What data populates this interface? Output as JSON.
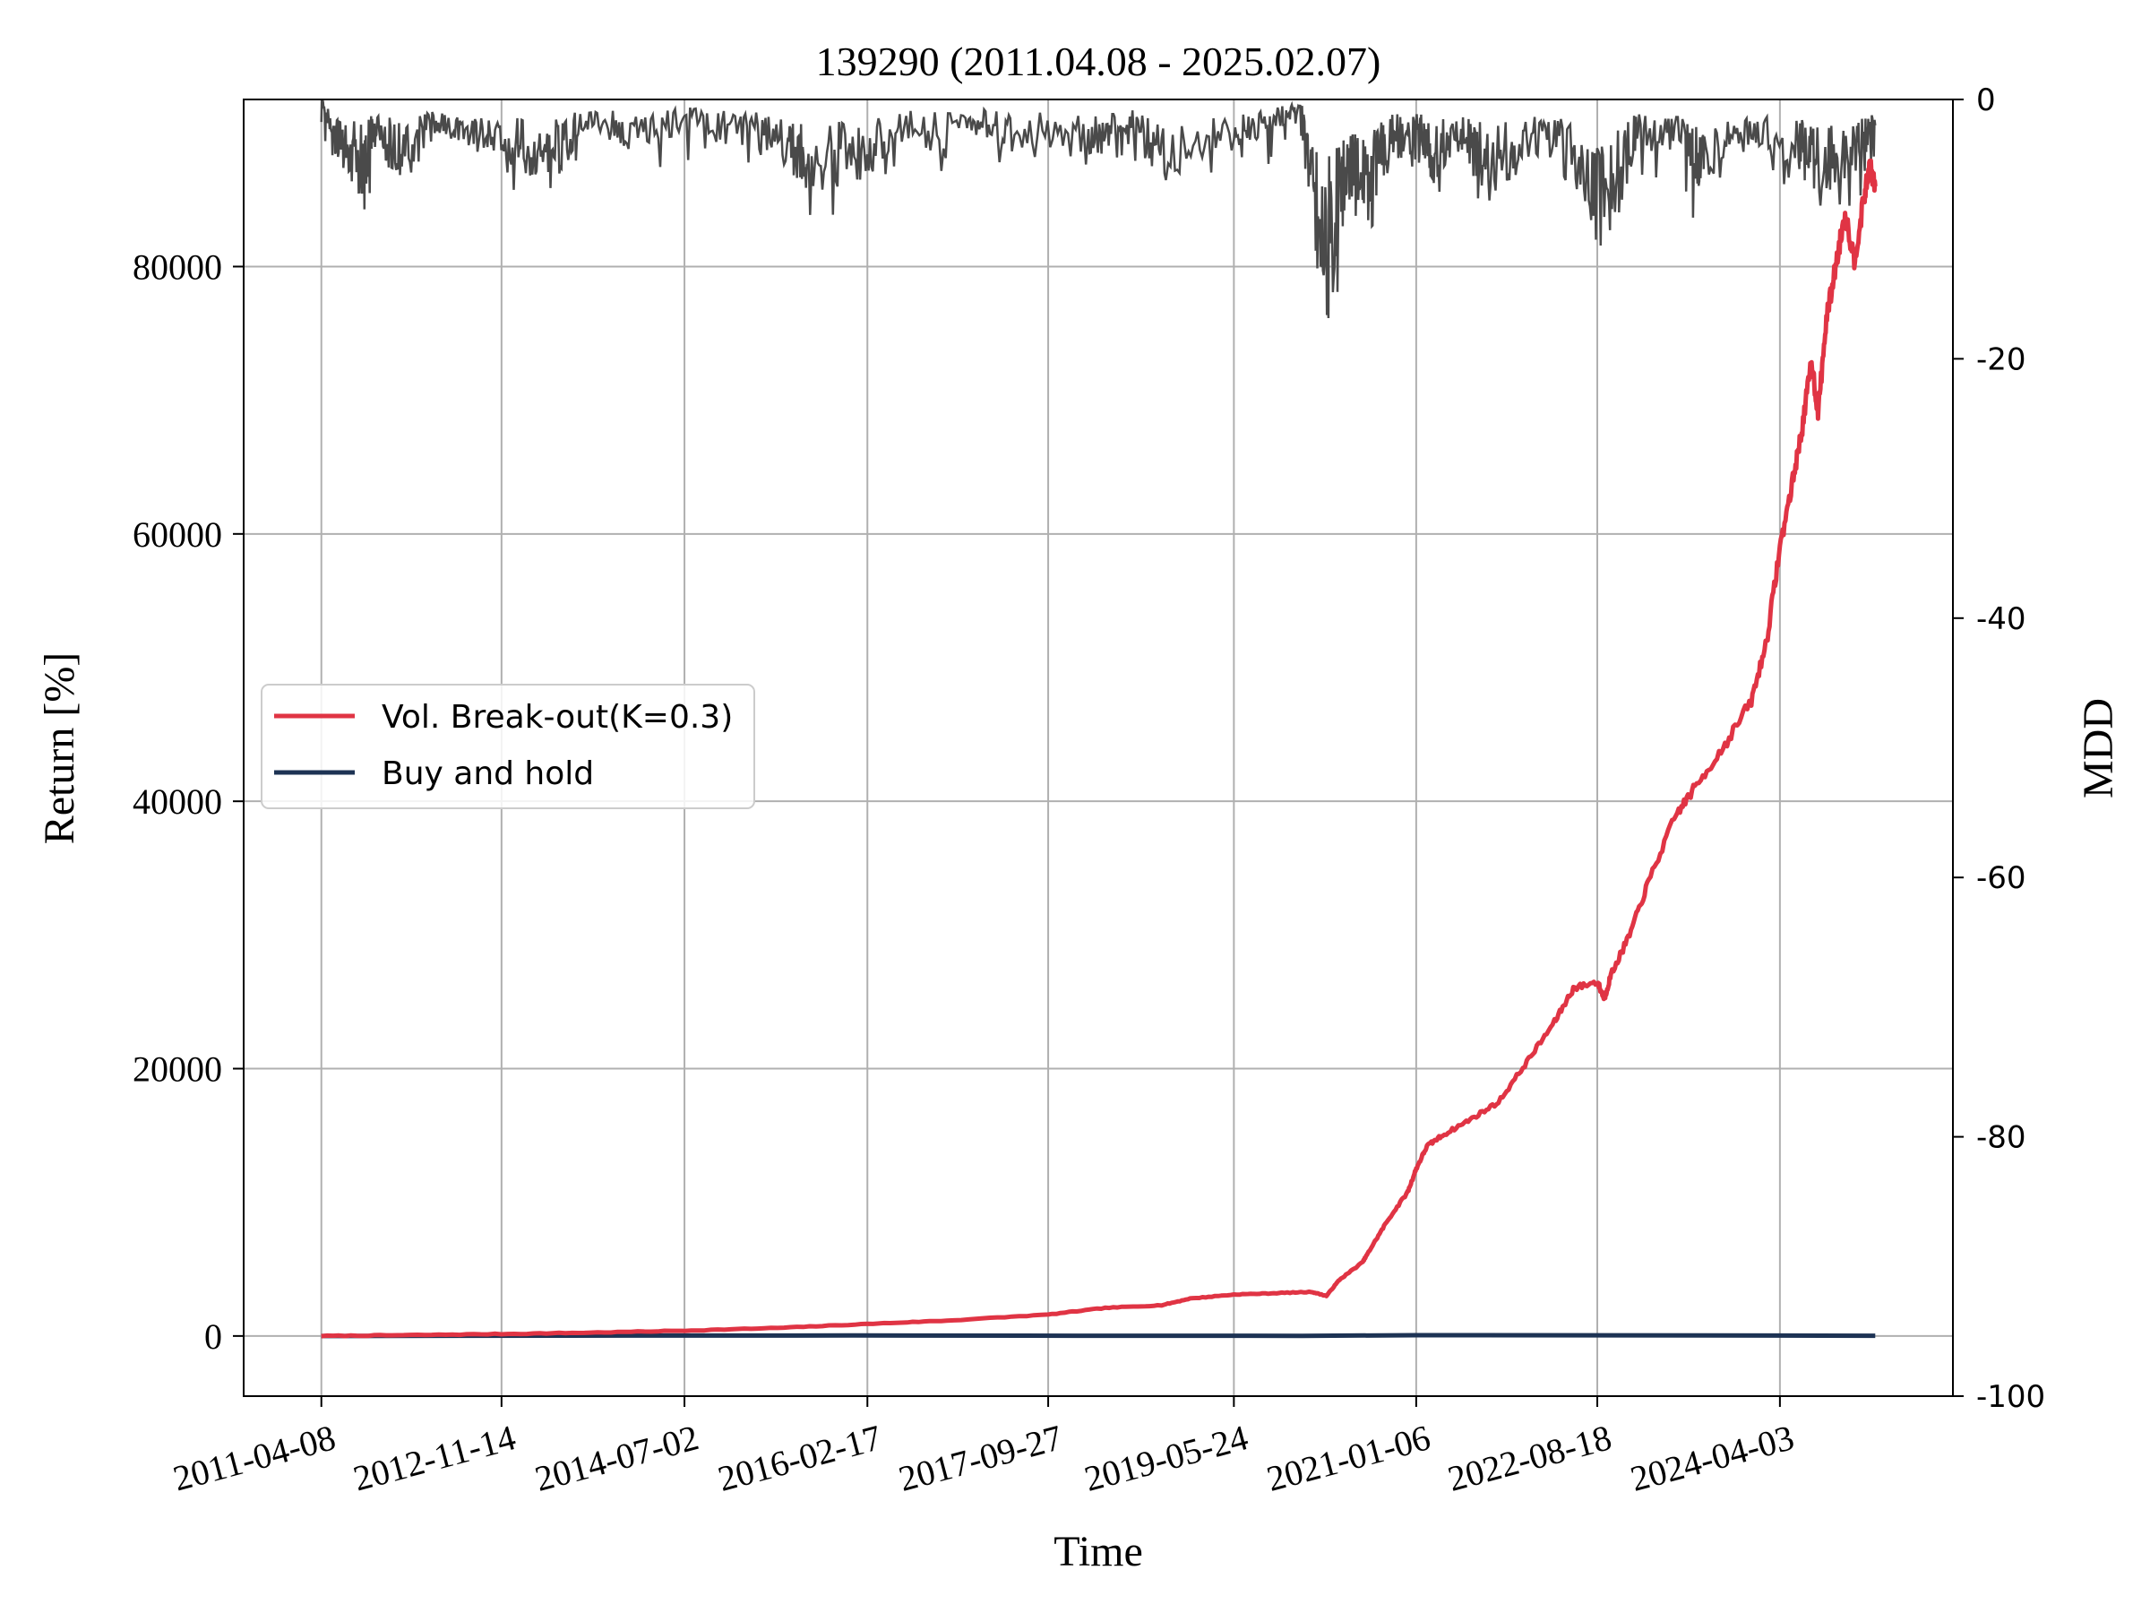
{
  "chart_data": {
    "type": "line",
    "title": "139290 (2011.04.08 - 2025.02.07)",
    "xlabel": "Time",
    "ylabel": "Return [%]",
    "y2label": "MDD",
    "x_start": "2011-04-08",
    "x_end": "2025-02-07",
    "x_ticks": [
      "2011-04-08",
      "2012-11-14",
      "2014-07-02",
      "2016-02-17",
      "2017-09-27",
      "2019-05-24",
      "2021-01-06",
      "2022-08-18",
      "2024-04-03"
    ],
    "ylim": [
      -4500,
      92500
    ],
    "yticks": [
      0,
      20000,
      40000,
      60000,
      80000
    ],
    "y2lim": [
      -100,
      0
    ],
    "y2ticks": [
      0,
      -20,
      -40,
      -60,
      -80,
      -100
    ],
    "grid": true,
    "legend": "center-left",
    "colors": {
      "strategy": "#e03444",
      "benchmark": "#1d3354",
      "mdd": "#4a4a4a"
    },
    "series": [
      {
        "name": "Vol. Break-out(K=0.3)",
        "axis": "left",
        "points": [
          [
            "2011-04-08",
            0
          ],
          [
            "2012-01-01",
            60
          ],
          [
            "2012-11-14",
            150
          ],
          [
            "2013-09-01",
            250
          ],
          [
            "2014-07-02",
            400
          ],
          [
            "2015-05-01",
            600
          ],
          [
            "2016-02-17",
            900
          ],
          [
            "2016-11-01",
            1150
          ],
          [
            "2017-09-27",
            1600
          ],
          [
            "2018-04-01",
            2100
          ],
          [
            "2018-10-01",
            2300
          ],
          [
            "2019-01-01",
            2800
          ],
          [
            "2019-05-24",
            3100
          ],
          [
            "2019-10-01",
            3200
          ],
          [
            "2020-02-01",
            3300
          ],
          [
            "2020-03-20",
            3000
          ],
          [
            "2020-05-01",
            4200
          ],
          [
            "2020-07-15",
            5500
          ],
          [
            "2020-08-10",
            6500
          ],
          [
            "2020-10-01",
            8500
          ],
          [
            "2020-12-10",
            10800
          ],
          [
            "2021-01-06",
            12500
          ],
          [
            "2021-02-10",
            14200
          ],
          [
            "2021-04-01",
            15000
          ],
          [
            "2021-07-01",
            16200
          ],
          [
            "2021-10-01",
            17500
          ],
          [
            "2022-01-01",
            20500
          ],
          [
            "2022-04-01",
            23500
          ],
          [
            "2022-06-01",
            26000
          ],
          [
            "2022-08-18",
            26500
          ],
          [
            "2022-09-10",
            25200
          ],
          [
            "2022-10-01",
            27000
          ],
          [
            "2022-12-01",
            30000
          ],
          [
            "2023-02-01",
            34000
          ],
          [
            "2023-05-01",
            39000
          ],
          [
            "2023-07-01",
            41000
          ],
          [
            "2023-10-01",
            44000
          ],
          [
            "2024-01-01",
            47500
          ],
          [
            "2024-02-20",
            52000
          ],
          [
            "2024-04-03",
            59000
          ],
          [
            "2024-05-15",
            64000
          ],
          [
            "2024-06-15",
            68000
          ],
          [
            "2024-07-15",
            73000
          ],
          [
            "2024-08-05",
            69000
          ],
          [
            "2024-09-01",
            76000
          ],
          [
            "2024-10-01",
            80000
          ],
          [
            "2024-11-01",
            84000
          ],
          [
            "2024-12-01",
            80500
          ],
          [
            "2025-01-01",
            85000
          ],
          [
            "2025-01-20",
            87500
          ],
          [
            "2025-02-07",
            86000
          ]
        ]
      },
      {
        "name": "Buy and hold",
        "axis": "left",
        "points": [
          [
            "2011-04-08",
            0
          ],
          [
            "2014-01-01",
            30
          ],
          [
            "2016-01-01",
            40
          ],
          [
            "2018-01-01",
            20
          ],
          [
            "2020-01-01",
            10
          ],
          [
            "2021-01-06",
            60
          ],
          [
            "2022-08-18",
            50
          ],
          [
            "2024-04-03",
            30
          ],
          [
            "2025-02-07",
            20
          ]
        ]
      },
      {
        "name": "MDD",
        "axis": "right",
        "points": [
          [
            "2011-04-08",
            0
          ],
          [
            "2011-06-01",
            -4
          ],
          [
            "2011-08-15",
            -6
          ],
          [
            "2011-10-01",
            -3
          ],
          [
            "2012-01-01",
            -5
          ],
          [
            "2012-05-01",
            -2
          ],
          [
            "2012-09-01",
            -3
          ],
          [
            "2013-01-01",
            -4
          ],
          [
            "2013-04-15",
            -6
          ],
          [
            "2013-08-01",
            -2
          ],
          [
            "2014-01-01",
            -3
          ],
          [
            "2014-07-02",
            -2
          ],
          [
            "2015-01-01",
            -3
          ],
          [
            "2015-06-01",
            -4
          ],
          [
            "2015-08-20",
            -6
          ],
          [
            "2016-01-15",
            -5
          ],
          [
            "2016-06-01",
            -3
          ],
          [
            "2017-01-01",
            -2
          ],
          [
            "2017-06-01",
            -3
          ],
          [
            "2018-02-05",
            -4
          ],
          [
            "2018-06-01",
            -2
          ],
          [
            "2018-10-15",
            -5
          ],
          [
            "2019-05-24",
            -3
          ],
          [
            "2019-10-01",
            -2
          ],
          [
            "2020-01-01",
            -1
          ],
          [
            "2020-03-19",
            -14
          ],
          [
            "2020-06-01",
            -6
          ],
          [
            "2020-08-01",
            -9
          ],
          [
            "2020-10-01",
            -4
          ],
          [
            "2021-01-06",
            -2
          ],
          [
            "2021-03-01",
            -5
          ],
          [
            "2021-06-01",
            -3
          ],
          [
            "2021-09-01",
            -6
          ],
          [
            "2022-01-01",
            -4
          ],
          [
            "2022-06-01",
            -5
          ],
          [
            "2022-09-25",
            -9
          ],
          [
            "2023-01-01",
            -3
          ],
          [
            "2023-06-01",
            -4
          ],
          [
            "2023-08-01",
            -6
          ],
          [
            "2024-01-01",
            -3
          ],
          [
            "2024-06-01",
            -4
          ],
          [
            "2024-08-05",
            -7
          ],
          [
            "2024-12-01",
            -5
          ],
          [
            "2025-02-07",
            -2
          ]
        ]
      }
    ]
  }
}
